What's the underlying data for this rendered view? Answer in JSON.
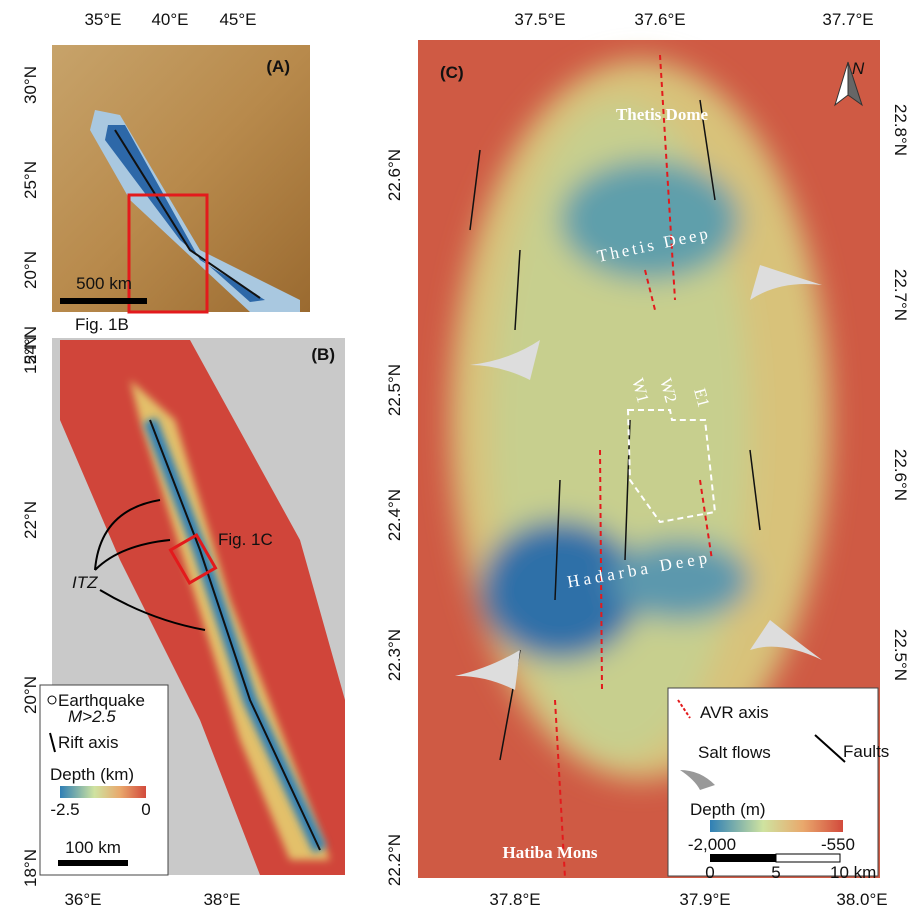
{
  "panel_a": {
    "label": "(A)",
    "top_ticks": [
      "35°E",
      "40°E",
      "45°E"
    ],
    "left_ticks": [
      "30°N",
      "25°N",
      "20°N",
      "15°N"
    ],
    "inset_label": "Fig. 1B",
    "scale": "500 km"
  },
  "panel_b": {
    "label": "(B)",
    "left_ticks": [
      "24°N",
      "22°N",
      "20°N",
      "18°N"
    ],
    "bottom_ticks": [
      "36°E",
      "38°E"
    ],
    "inset_label": "Fig. 1C",
    "annotation": "ITZ",
    "legend": {
      "earthquake": "Earthquake",
      "magnitude": "M>2.5",
      "rift": "Rift axis",
      "depth_title": "Depth (km)",
      "depth_min": "-2.5",
      "depth_max": "0"
    },
    "scale": "100 km"
  },
  "panel_c": {
    "label": "(C)",
    "top_ticks": [
      "37.5°E",
      "37.6°E",
      "37.7°E"
    ],
    "left_ticks": [
      "22.6°N",
      "22.5°N",
      "22.4°N",
      "22.3°N",
      "22.2°N"
    ],
    "right_ticks": [
      "22.8°N",
      "22.7°N",
      "22.6°N",
      "22.5°N"
    ],
    "bottom_ticks": [
      "37.8°E",
      "37.9°E",
      "38.0°E"
    ],
    "features": [
      "Thetis Dome",
      "Thetis Deep",
      "Hadarba Deep",
      "Hatiba Mons"
    ],
    "wells": [
      "W1",
      "W2",
      "E1"
    ],
    "north": "N",
    "legend": {
      "axis": "AVR axis",
      "salt": "Salt flows",
      "faults": "Faults",
      "depth_title": "Depth (m)",
      "depth_min": "-2,000",
      "depth_max": "-550",
      "scale": [
        "0",
        "5",
        "10 km"
      ]
    }
  }
}
